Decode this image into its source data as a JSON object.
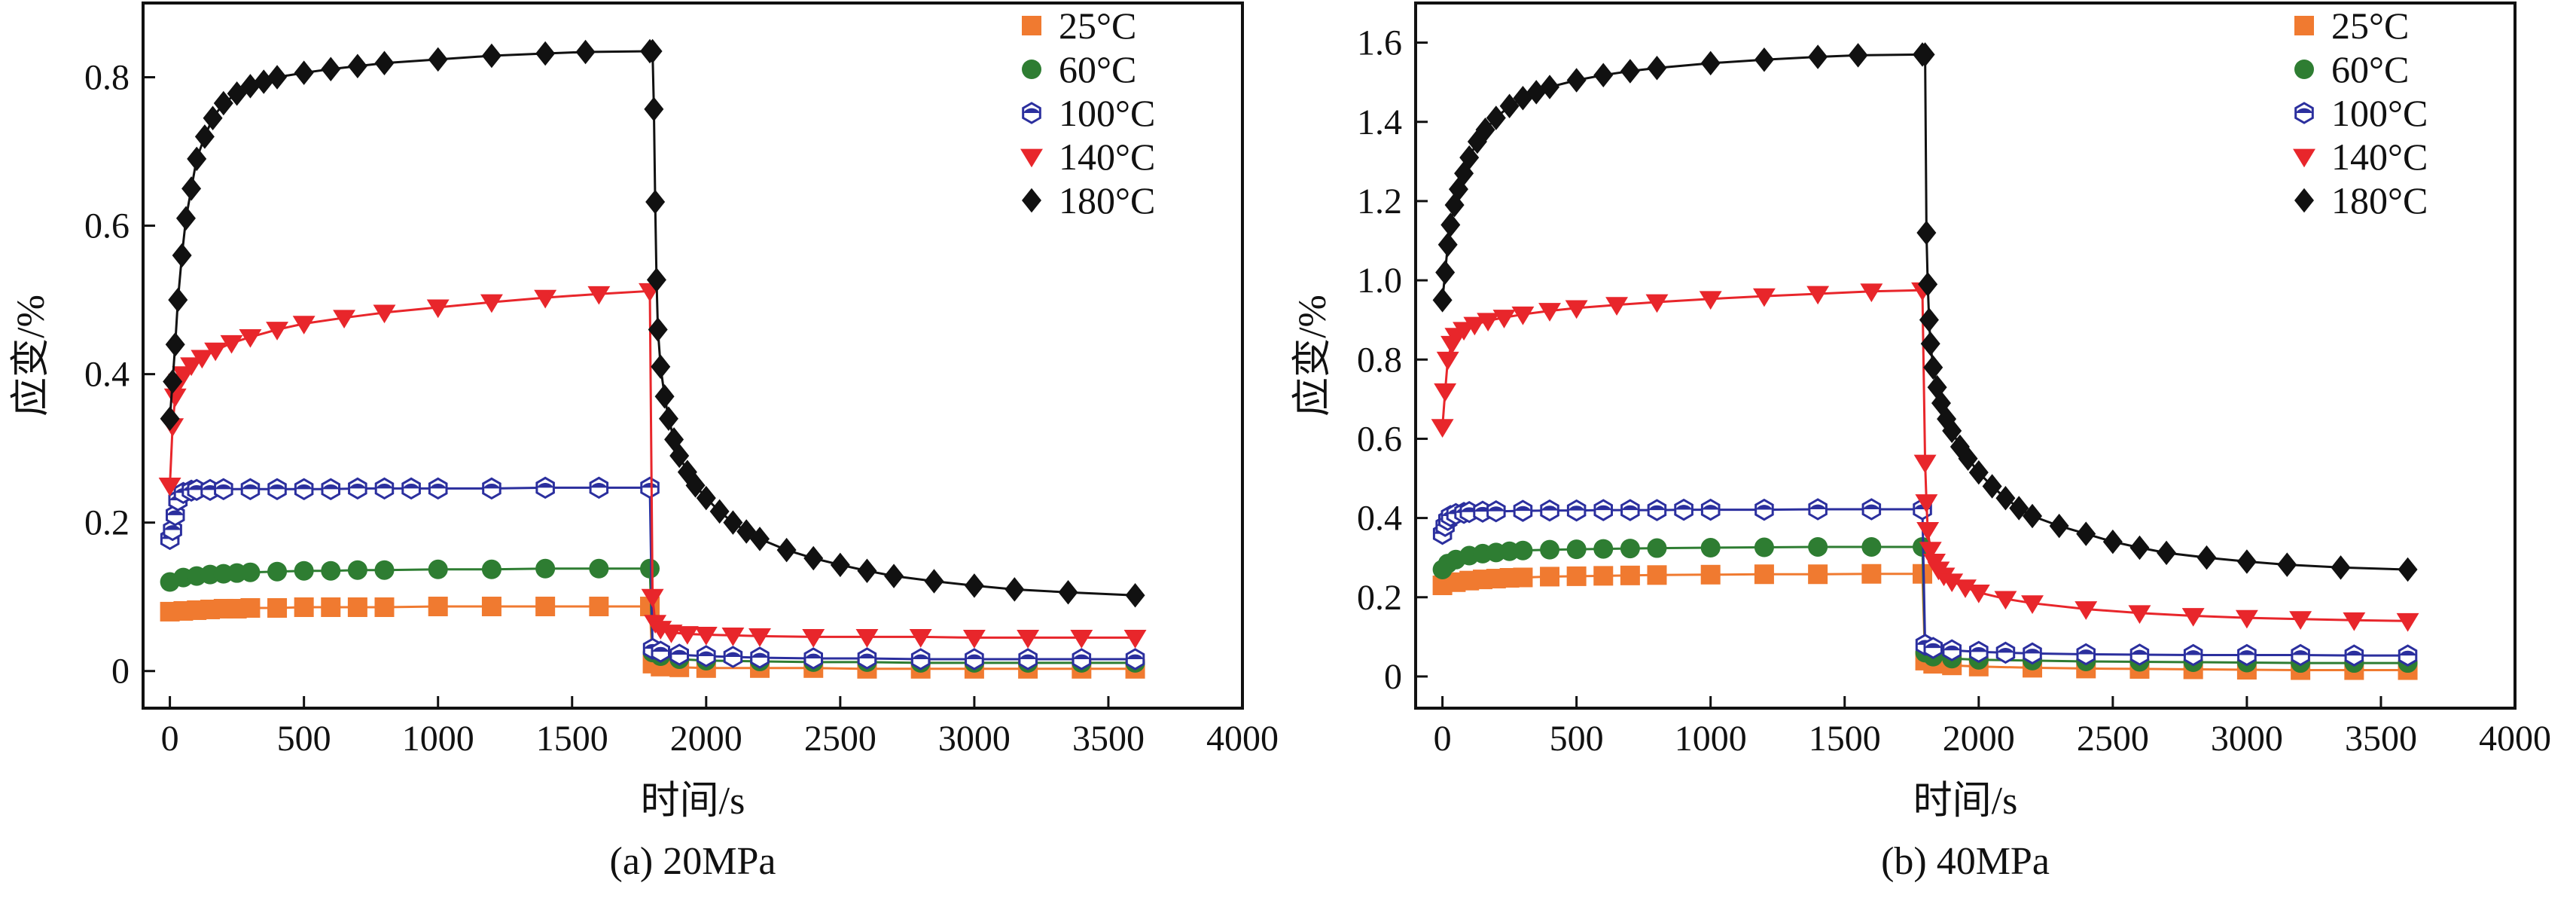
{
  "chart_data": [
    {
      "type": "line",
      "caption": "(a) 20MPa",
      "xlabel": "时间/s",
      "ylabel": "应变/%",
      "xlim": [
        -100,
        4000
      ],
      "ylim": [
        -0.05,
        0.9
      ],
      "xticks": [
        0,
        500,
        1000,
        1500,
        2000,
        2500,
        3000,
        3500,
        4000
      ],
      "yticks": [
        0,
        0.2,
        0.4,
        0.6,
        0.8
      ],
      "ytick_labels": [
        "0",
        "0.2",
        "0.4",
        "0.6",
        "0.8"
      ],
      "legend_position": "top-right",
      "series": [
        {
          "name": "25°C",
          "color": "#f07a30",
          "marker": "square",
          "x": [
            0,
            50,
            100,
            150,
            200,
            250,
            300,
            400,
            500,
            600,
            700,
            800,
            1000,
            1200,
            1400,
            1600,
            1790,
            1800,
            1830,
            1900,
            2000,
            2200,
            2400,
            2600,
            2800,
            3000,
            3200,
            3400,
            3600
          ],
          "y": [
            0.08,
            0.081,
            0.082,
            0.083,
            0.084,
            0.084,
            0.085,
            0.085,
            0.086,
            0.086,
            0.086,
            0.086,
            0.087,
            0.087,
            0.087,
            0.087,
            0.087,
            0.01,
            0.006,
            0.005,
            0.004,
            0.004,
            0.004,
            0.003,
            0.003,
            0.003,
            0.003,
            0.003,
            0.003
          ]
        },
        {
          "name": "60°C",
          "color": "#2e7d32",
          "marker": "circle",
          "x": [
            0,
            50,
            100,
            150,
            200,
            250,
            300,
            400,
            500,
            600,
            700,
            800,
            1000,
            1200,
            1400,
            1600,
            1790,
            1800,
            1830,
            1900,
            2000,
            2200,
            2400,
            2600,
            2800,
            3000,
            3200,
            3400,
            3600
          ],
          "y": [
            0.12,
            0.126,
            0.128,
            0.13,
            0.131,
            0.132,
            0.133,
            0.134,
            0.135,
            0.135,
            0.136,
            0.136,
            0.137,
            0.137,
            0.138,
            0.138,
            0.138,
            0.025,
            0.02,
            0.016,
            0.014,
            0.013,
            0.012,
            0.012,
            0.011,
            0.011,
            0.011,
            0.011,
            0.011
          ]
        },
        {
          "name": "100°C",
          "color": "#2b2f9e",
          "marker": "hex",
          "x": [
            0,
            10,
            20,
            30,
            50,
            80,
            100,
            150,
            200,
            300,
            400,
            500,
            600,
            700,
            800,
            900,
            1000,
            1200,
            1400,
            1600,
            1790,
            1800,
            1830,
            1900,
            2000,
            2100,
            2200,
            2400,
            2600,
            2800,
            3000,
            3200,
            3400,
            3600
          ],
          "y": [
            0.178,
            0.19,
            0.21,
            0.23,
            0.24,
            0.243,
            0.244,
            0.244,
            0.245,
            0.245,
            0.245,
            0.245,
            0.245,
            0.246,
            0.246,
            0.246,
            0.246,
            0.246,
            0.247,
            0.247,
            0.247,
            0.03,
            0.026,
            0.022,
            0.02,
            0.019,
            0.018,
            0.017,
            0.017,
            0.016,
            0.016,
            0.016,
            0.016,
            0.016
          ]
        },
        {
          "name": "140°C",
          "color": "#e8262b",
          "marker": "triangle-down",
          "x": [
            0,
            10,
            20,
            35,
            50,
            80,
            120,
            170,
            230,
            300,
            400,
            500,
            650,
            800,
            1000,
            1200,
            1400,
            1600,
            1790,
            1800,
            1810,
            1830,
            1870,
            1930,
            2000,
            2100,
            2200,
            2400,
            2600,
            2800,
            3000,
            3200,
            3400,
            3600
          ],
          "y": [
            0.25,
            0.33,
            0.37,
            0.39,
            0.4,
            0.412,
            0.422,
            0.432,
            0.442,
            0.45,
            0.46,
            0.468,
            0.476,
            0.483,
            0.49,
            0.497,
            0.503,
            0.508,
            0.512,
            0.1,
            0.065,
            0.057,
            0.052,
            0.05,
            0.049,
            0.048,
            0.047,
            0.046,
            0.046,
            0.046,
            0.045,
            0.045,
            0.045,
            0.045
          ]
        },
        {
          "name": "180°C",
          "color": "#111111",
          "marker": "diamond",
          "x": [
            0,
            10,
            20,
            30,
            45,
            60,
            80,
            100,
            130,
            160,
            200,
            250,
            300,
            350,
            400,
            500,
            600,
            700,
            800,
            1000,
            1200,
            1400,
            1550,
            1790,
            1800,
            1805,
            1810,
            1815,
            1820,
            1830,
            1845,
            1860,
            1880,
            1900,
            1930,
            1960,
            2000,
            2050,
            2100,
            2150,
            2200,
            2300,
            2400,
            2500,
            2600,
            2700,
            2850,
            3000,
            3150,
            3350,
            3600
          ],
          "y": [
            0.34,
            0.39,
            0.44,
            0.5,
            0.56,
            0.61,
            0.65,
            0.69,
            0.72,
            0.745,
            0.765,
            0.778,
            0.788,
            0.794,
            0.8,
            0.806,
            0.811,
            0.815,
            0.819,
            0.824,
            0.829,
            0.832,
            0.834,
            0.835,
            0.835,
            0.757,
            0.632,
            0.527,
            0.46,
            0.41,
            0.37,
            0.34,
            0.312,
            0.29,
            0.268,
            0.25,
            0.233,
            0.215,
            0.2,
            0.188,
            0.178,
            0.163,
            0.152,
            0.143,
            0.135,
            0.128,
            0.121,
            0.115,
            0.11,
            0.106,
            0.102
          ]
        }
      ]
    },
    {
      "type": "line",
      "caption": "(b) 40MPa",
      "xlabel": "时间/s",
      "ylabel": "应变/%",
      "xlim": [
        -100,
        4000
      ],
      "ylim": [
        -0.08,
        1.7
      ],
      "xticks": [
        0,
        500,
        1000,
        1500,
        2000,
        2500,
        3000,
        3500,
        4000
      ],
      "yticks": [
        0,
        0.2,
        0.4,
        0.6,
        0.8,
        1.0,
        1.2,
        1.4,
        1.6
      ],
      "ytick_labels": [
        "0",
        "0.2",
        "0.4",
        "0.6",
        "0.8",
        "1.0",
        "1.2",
        "1.4",
        "1.6"
      ],
      "legend_position": "top-right",
      "series": [
        {
          "name": "25°C",
          "color": "#f07a30",
          "marker": "square",
          "x": [
            0,
            50,
            100,
            150,
            200,
            250,
            300,
            400,
            500,
            600,
            700,
            800,
            1000,
            1200,
            1400,
            1600,
            1790,
            1800,
            1830,
            1900,
            2000,
            2200,
            2400,
            2600,
            2800,
            3000,
            3200,
            3400,
            3600
          ],
          "y": [
            0.23,
            0.238,
            0.242,
            0.245,
            0.247,
            0.249,
            0.25,
            0.252,
            0.253,
            0.254,
            0.255,
            0.256,
            0.257,
            0.258,
            0.258,
            0.259,
            0.259,
            0.04,
            0.032,
            0.028,
            0.025,
            0.022,
            0.02,
            0.019,
            0.018,
            0.017,
            0.016,
            0.016,
            0.016
          ]
        },
        {
          "name": "60°C",
          "color": "#2e7d32",
          "marker": "circle",
          "x": [
            0,
            20,
            50,
            100,
            150,
            200,
            250,
            300,
            400,
            500,
            600,
            700,
            800,
            1000,
            1200,
            1400,
            1600,
            1790,
            1800,
            1830,
            1900,
            2000,
            2200,
            2400,
            2600,
            2800,
            3000,
            3200,
            3400,
            3600
          ],
          "y": [
            0.27,
            0.285,
            0.295,
            0.305,
            0.31,
            0.313,
            0.316,
            0.318,
            0.32,
            0.321,
            0.322,
            0.323,
            0.324,
            0.325,
            0.326,
            0.327,
            0.327,
            0.327,
            0.06,
            0.05,
            0.045,
            0.042,
            0.04,
            0.038,
            0.037,
            0.036,
            0.035,
            0.034,
            0.034,
            0.034
          ]
        },
        {
          "name": "100°C",
          "color": "#2b2f9e",
          "marker": "hex",
          "x": [
            0,
            10,
            20,
            30,
            50,
            80,
            100,
            150,
            200,
            300,
            400,
            500,
            600,
            700,
            800,
            900,
            1000,
            1200,
            1400,
            1600,
            1790,
            1800,
            1830,
            1900,
            2000,
            2100,
            2200,
            2400,
            2600,
            2800,
            3000,
            3200,
            3400,
            3600
          ],
          "y": [
            0.36,
            0.38,
            0.395,
            0.405,
            0.41,
            0.413,
            0.415,
            0.416,
            0.417,
            0.418,
            0.419,
            0.419,
            0.42,
            0.42,
            0.42,
            0.421,
            0.421,
            0.421,
            0.422,
            0.422,
            0.422,
            0.08,
            0.072,
            0.066,
            0.062,
            0.06,
            0.058,
            0.056,
            0.055,
            0.054,
            0.054,
            0.054,
            0.053,
            0.053
          ]
        },
        {
          "name": "140°C",
          "color": "#e8262b",
          "marker": "triangle-down",
          "x": [
            0,
            10,
            20,
            35,
            50,
            80,
            120,
            170,
            230,
            300,
            400,
            500,
            650,
            800,
            1000,
            1200,
            1400,
            1600,
            1790,
            1800,
            1805,
            1810,
            1820,
            1835,
            1850,
            1870,
            1900,
            1950,
            2000,
            2100,
            2200,
            2400,
            2600,
            2800,
            3000,
            3200,
            3400,
            3600
          ],
          "y": [
            0.63,
            0.72,
            0.8,
            0.84,
            0.86,
            0.875,
            0.888,
            0.898,
            0.906,
            0.914,
            0.923,
            0.93,
            0.938,
            0.945,
            0.953,
            0.96,
            0.966,
            0.972,
            0.975,
            0.54,
            0.44,
            0.37,
            0.32,
            0.29,
            0.27,
            0.255,
            0.24,
            0.225,
            0.212,
            0.196,
            0.185,
            0.17,
            0.16,
            0.153,
            0.148,
            0.145,
            0.142,
            0.14
          ]
        },
        {
          "name": "180°C",
          "color": "#111111",
          "marker": "diamond",
          "x": [
            0,
            10,
            20,
            30,
            45,
            60,
            80,
            100,
            130,
            160,
            200,
            250,
            300,
            350,
            400,
            500,
            600,
            700,
            800,
            1000,
            1200,
            1400,
            1550,
            1790,
            1800,
            1805,
            1810,
            1815,
            1820,
            1830,
            1845,
            1860,
            1880,
            1900,
            1930,
            1960,
            2000,
            2050,
            2100,
            2150,
            2200,
            2300,
            2400,
            2500,
            2600,
            2700,
            2850,
            3000,
            3150,
            3350,
            3600
          ],
          "y": [
            0.95,
            1.02,
            1.09,
            1.14,
            1.19,
            1.23,
            1.27,
            1.31,
            1.35,
            1.38,
            1.41,
            1.44,
            1.46,
            1.475,
            1.488,
            1.505,
            1.518,
            1.528,
            1.536,
            1.548,
            1.557,
            1.564,
            1.568,
            1.57,
            1.57,
            1.12,
            0.99,
            0.9,
            0.84,
            0.78,
            0.73,
            0.69,
            0.65,
            0.62,
            0.58,
            0.55,
            0.515,
            0.48,
            0.45,
            0.425,
            0.405,
            0.38,
            0.36,
            0.34,
            0.325,
            0.312,
            0.3,
            0.29,
            0.282,
            0.275,
            0.27
          ]
        }
      ]
    }
  ]
}
